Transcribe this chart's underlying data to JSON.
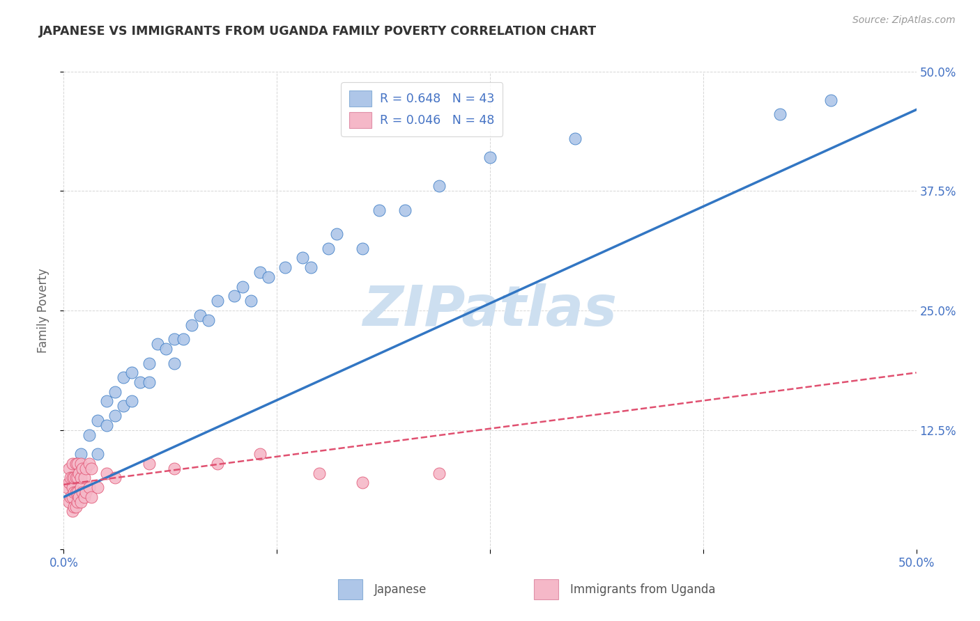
{
  "title": "JAPANESE VS IMMIGRANTS FROM UGANDA FAMILY POVERTY CORRELATION CHART",
  "source": "Source: ZipAtlas.com",
  "ylabel": "Family Poverty",
  "watermark": "ZIPatlas",
  "xlim": [
    0.0,
    0.5
  ],
  "ylim": [
    0.0,
    0.5
  ],
  "legend_R1": "R = 0.648",
  "legend_N1": "N = 43",
  "legend_R2": "R = 0.046",
  "legend_N2": "N = 48",
  "color_japanese": "#aec6e8",
  "color_uganda": "#f5b8c8",
  "color_line_japanese": "#3276c3",
  "color_line_uganda": "#e05070",
  "label_japanese": "Japanese",
  "label_uganda": "Immigrants from Uganda",
  "japanese_x": [
    0.005,
    0.01,
    0.015,
    0.02,
    0.02,
    0.025,
    0.025,
    0.03,
    0.03,
    0.035,
    0.035,
    0.04,
    0.04,
    0.045,
    0.05,
    0.05,
    0.055,
    0.06,
    0.065,
    0.065,
    0.07,
    0.075,
    0.08,
    0.085,
    0.09,
    0.1,
    0.105,
    0.11,
    0.115,
    0.12,
    0.13,
    0.14,
    0.145,
    0.155,
    0.16,
    0.175,
    0.185,
    0.2,
    0.22,
    0.25,
    0.3,
    0.42,
    0.45
  ],
  "japanese_y": [
    0.065,
    0.1,
    0.12,
    0.1,
    0.135,
    0.13,
    0.155,
    0.14,
    0.165,
    0.15,
    0.18,
    0.155,
    0.185,
    0.175,
    0.175,
    0.195,
    0.215,
    0.21,
    0.195,
    0.22,
    0.22,
    0.235,
    0.245,
    0.24,
    0.26,
    0.265,
    0.275,
    0.26,
    0.29,
    0.285,
    0.295,
    0.305,
    0.295,
    0.315,
    0.33,
    0.315,
    0.355,
    0.355,
    0.38,
    0.41,
    0.43,
    0.455,
    0.47
  ],
  "uganda_x": [
    0.002,
    0.003,
    0.003,
    0.003,
    0.004,
    0.004,
    0.005,
    0.005,
    0.005,
    0.005,
    0.005,
    0.006,
    0.006,
    0.006,
    0.007,
    0.007,
    0.007,
    0.007,
    0.008,
    0.008,
    0.008,
    0.008,
    0.009,
    0.009,
    0.01,
    0.01,
    0.01,
    0.01,
    0.011,
    0.011,
    0.012,
    0.012,
    0.013,
    0.013,
    0.015,
    0.015,
    0.016,
    0.016,
    0.02,
    0.025,
    0.03,
    0.05,
    0.065,
    0.09,
    0.115,
    0.15,
    0.175,
    0.22
  ],
  "uganda_y": [
    0.065,
    0.05,
    0.07,
    0.085,
    0.055,
    0.075,
    0.04,
    0.055,
    0.065,
    0.075,
    0.09,
    0.045,
    0.06,
    0.075,
    0.045,
    0.06,
    0.075,
    0.09,
    0.05,
    0.06,
    0.075,
    0.09,
    0.055,
    0.08,
    0.05,
    0.065,
    0.075,
    0.09,
    0.06,
    0.085,
    0.055,
    0.075,
    0.06,
    0.085,
    0.065,
    0.09,
    0.055,
    0.085,
    0.065,
    0.08,
    0.075,
    0.09,
    0.085,
    0.09,
    0.1,
    0.08,
    0.07,
    0.08
  ],
  "jap_line_x0": 0.0,
  "jap_line_y0": 0.055,
  "jap_line_x1": 0.5,
  "jap_line_y1": 0.46,
  "uga_line_x0": 0.0,
  "uga_line_y0": 0.068,
  "uga_line_x1": 0.5,
  "uga_line_y1": 0.185,
  "background_color": "#ffffff",
  "grid_color": "#cccccc",
  "title_color": "#333333",
  "axis_label_color": "#4472c4",
  "watermark_color": "#cddff0"
}
